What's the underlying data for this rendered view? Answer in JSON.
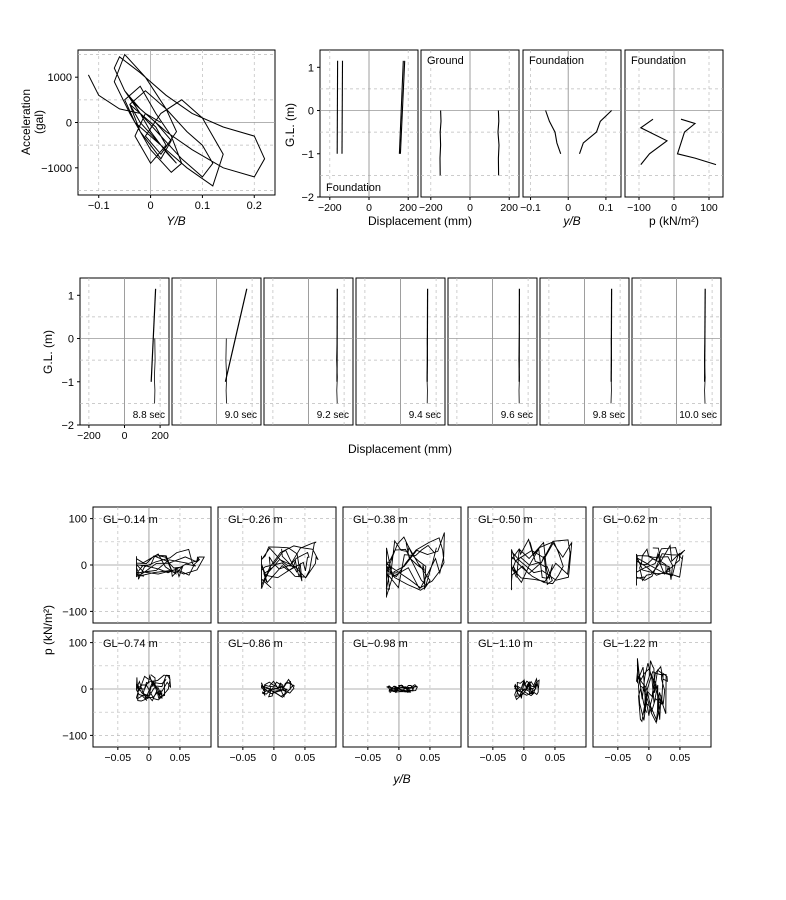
{
  "chart_data": [
    {
      "id": "acc-loop",
      "type": "line",
      "xlabel": "Y/B",
      "ylabel": "Acceleration (gal)",
      "xlim": [
        -0.14,
        0.24
      ],
      "ylim": [
        -1600,
        1600
      ],
      "xticks": [
        -0.1,
        0,
        0.1,
        0.2
      ],
      "xtick_labels": [
        "−0.1",
        "0",
        "0.1",
        "0.2"
      ],
      "yticks": [
        -1000,
        0,
        1000
      ],
      "ytick_labels": [
        "−1000",
        "0",
        "1000"
      ],
      "grid": true,
      "series": [
        {
          "x": [
            -0.12,
            -0.1,
            -0.06,
            -0.02,
            0.0,
            0.03,
            0.05,
            0.02,
            -0.03,
            -0.05,
            -0.02,
            0.01,
            0.04,
            0.06,
            0.04,
            0.0,
            -0.04,
            -0.07,
            -0.05,
            -0.01,
            0.03,
            0.07,
            0.1,
            0.12,
            0.1,
            0.06,
            0.02,
            -0.02,
            -0.05,
            -0.07,
            -0.06,
            -0.02,
            0.03,
            0.08,
            0.14,
            0.2,
            0.22,
            0.2,
            0.14,
            0.08,
            0.03,
            -0.02,
            -0.05,
            -0.03,
            0.01,
            0.04,
            0.02,
            -0.02,
            -0.04,
            -0.01,
            0.03,
            0.05,
            0.02,
            -0.01,
            0.02,
            0.06,
            0.1,
            0.14,
            0.12,
            0.07,
            0.02,
            -0.02,
            -0.04,
            -0.02,
            0.01,
            0.03,
            0.0,
            -0.03,
            -0.01,
            0.02
          ],
          "y": [
            1050,
            600,
            300,
            200,
            -200,
            -650,
            -900,
            -500,
            0,
            500,
            800,
            200,
            -300,
            -900,
            -1100,
            -600,
            200,
            900,
            1500,
            1000,
            300,
            -200,
            -500,
            -900,
            -1200,
            -800,
            -300,
            200,
            700,
            1200,
            1450,
            1100,
            600,
            200,
            -100,
            -300,
            -800,
            -1200,
            -1000,
            -600,
            -200,
            300,
            700,
            400,
            0,
            -400,
            -800,
            -200,
            400,
            700,
            300,
            -200,
            -700,
            -300,
            200,
            500,
            100,
            -700,
            -1400,
            -1000,
            -500,
            0,
            400,
            200,
            -100,
            -500,
            -900,
            -300,
            200,
            0
          ]
        }
      ]
    },
    {
      "id": "profile-disp",
      "type": "line",
      "xlabel": "Displacement (mm)",
      "ylabel": "G.L. (m)",
      "xlim": [
        -250,
        250
      ],
      "ylim": [
        -2,
        1.4
      ],
      "xticks": [
        -200,
        0,
        200
      ],
      "xtick_labels": [
        "−200",
        "0",
        "200"
      ],
      "yticks": [
        -2,
        -1,
        0,
        1
      ],
      "ytick_labels": [
        "−2",
        "−1",
        "0",
        "1"
      ],
      "annotation": "Foundation",
      "series": [
        {
          "x": [
            -160,
            -162
          ],
          "y": [
            1.15,
            -1.0
          ]
        },
        {
          "x": [
            -135,
            -138
          ],
          "y": [
            1.15,
            -1.0
          ]
        },
        {
          "x": [
            175,
            155
          ],
          "y": [
            1.15,
            -1.0
          ]
        },
        {
          "x": [
            182,
            160
          ],
          "y": [
            1.15,
            -1.0
          ]
        }
      ]
    },
    {
      "id": "profile-ground",
      "type": "line",
      "xlim": [
        -250,
        250
      ],
      "ylim": [
        -2,
        1.4
      ],
      "xticks": [
        -200,
        0,
        200
      ],
      "xtick_labels": [
        "−200",
        "0",
        "200"
      ],
      "annotation": "Ground",
      "series": [
        {
          "x": [
            -150,
            -148,
            -152,
            -150,
            -153,
            -152
          ],
          "y": [
            0,
            -0.25,
            -0.5,
            -0.8,
            -1.1,
            -1.5
          ]
        },
        {
          "x": [
            145,
            147,
            143,
            148,
            145,
            146
          ],
          "y": [
            0,
            -0.25,
            -0.5,
            -0.8,
            -1.1,
            -1.5
          ]
        }
      ]
    },
    {
      "id": "profile-foundation-yb",
      "type": "line",
      "xlabel": "y/B",
      "xlim": [
        -0.12,
        0.14
      ],
      "ylim": [
        -2,
        1.4
      ],
      "xticks": [
        -0.1,
        0,
        0.1
      ],
      "xtick_labels": [
        "−0.1",
        "0",
        "0.1"
      ],
      "annotation": "Foundation",
      "series": [
        {
          "x": [
            -0.06,
            -0.05,
            -0.035,
            -0.03,
            -0.02
          ],
          "y": [
            0,
            -0.25,
            -0.5,
            -0.75,
            -1.0
          ]
        },
        {
          "x": [
            0.115,
            0.085,
            0.075,
            0.04,
            0.03
          ],
          "y": [
            0,
            -0.25,
            -0.5,
            -0.75,
            -1.0
          ]
        }
      ]
    },
    {
      "id": "profile-foundation-p",
      "type": "line",
      "xlabel": "p (kN/m²)",
      "xlim": [
        -140,
        140
      ],
      "ylim": [
        -2,
        1.4
      ],
      "xticks": [
        -100,
        0,
        100
      ],
      "xtick_labels": [
        "−100",
        "0",
        "100"
      ],
      "annotation": "Foundation",
      "series": [
        {
          "x": [
            -60,
            -95,
            -20,
            -70,
            -95
          ],
          "y": [
            -0.2,
            -0.4,
            -0.7,
            -1.0,
            -1.25
          ]
        },
        {
          "x": [
            20,
            60,
            30,
            10,
            60,
            120
          ],
          "y": [
            -0.2,
            -0.3,
            -0.5,
            -1.0,
            -1.1,
            -1.25
          ]
        }
      ]
    },
    {
      "id": "disp-snapshots",
      "type": "line",
      "xlabel": "Displacement (mm)",
      "ylabel": "G.L. (m)",
      "xlim": [
        -250,
        250
      ],
      "ylim": [
        -2,
        1.4
      ],
      "xticks": [
        -200,
        0,
        200
      ],
      "xtick_labels": [
        "−200",
        "0",
        "200"
      ],
      "yticks": [
        -2,
        -1,
        0,
        1
      ],
      "ytick_labels": [
        "−2",
        "−1",
        "0",
        "1"
      ],
      "panels": [
        {
          "label": "8.8 sec",
          "ground": [
            170,
            172,
            168,
            171,
            169
          ],
          "foundation": [
            175,
            150
          ]
        },
        {
          "label": "9.0 sec",
          "ground": [
            55,
            53,
            57,
            54,
            56
          ],
          "foundation": [
            170,
            50
          ]
        },
        {
          "label": "9.2 sec",
          "ground": [
            160,
            158,
            162,
            159,
            161
          ],
          "foundation": [
            162,
            160
          ]
        },
        {
          "label": "9.4 sec",
          "ground": [
            150,
            152,
            149,
            151,
            150
          ],
          "foundation": [
            152,
            150
          ]
        },
        {
          "label": "9.6 sec",
          "ground": [
            150,
            148,
            151,
            149,
            150
          ],
          "foundation": [
            151,
            150
          ]
        },
        {
          "label": "9.8 sec",
          "ground": [
            150,
            152,
            150,
            151,
            149
          ],
          "foundation": [
            152,
            150
          ]
        },
        {
          "label": "10.0 sec",
          "ground": [
            160,
            157,
            161,
            158,
            160
          ],
          "foundation": [
            161,
            158
          ]
        }
      ],
      "ground_gl": [
        0,
        -0.5,
        -0.9,
        -1.2,
        -1.5
      ],
      "foundation_gl": [
        1.15,
        -1.0
      ]
    },
    {
      "id": "p-yb-loops",
      "type": "line",
      "xlabel": "y/B",
      "ylabel": "p (kN/m²)",
      "xlim": [
        -0.09,
        0.1
      ],
      "ylim": [
        -125,
        125
      ],
      "xticks": [
        -0.05,
        0,
        0.05
      ],
      "xtick_labels": [
        "−0.05",
        "0",
        "0.05"
      ],
      "yticks": [
        -100,
        0,
        100
      ],
      "ytick_labels": [
        "−100",
        "0",
        "100"
      ],
      "panels": [
        {
          "label": "GL−0.14 m",
          "xr": 0.09,
          "yr": 35,
          "skew": 0.2
        },
        {
          "label": "GL−0.26 m",
          "xr": 0.075,
          "yr": 55,
          "skew": 0.4
        },
        {
          "label": "GL−0.38 m",
          "xr": 0.08,
          "yr": 70,
          "skew": 0.3
        },
        {
          "label": "GL−0.50 m",
          "xr": 0.08,
          "yr": 65,
          "skew": 0.2
        },
        {
          "label": "GL−0.62 m",
          "xr": 0.06,
          "yr": 45,
          "skew": 0.2
        },
        {
          "label": "GL−0.74 m",
          "xr": 0.035,
          "yr": 35,
          "skew": 0.1
        },
        {
          "label": "GL−0.86 m",
          "xr": 0.035,
          "yr": 22,
          "skew": 0.1
        },
        {
          "label": "GL−0.98 m",
          "xr": 0.03,
          "yr": 10,
          "skew": 0.05
        },
        {
          "label": "GL−1.10 m",
          "xr": 0.025,
          "yr": 25,
          "skew": 0.1
        },
        {
          "label": "GL−1.22 m",
          "xr": 0.03,
          "yr": 85,
          "skew": 0.1
        }
      ]
    }
  ]
}
